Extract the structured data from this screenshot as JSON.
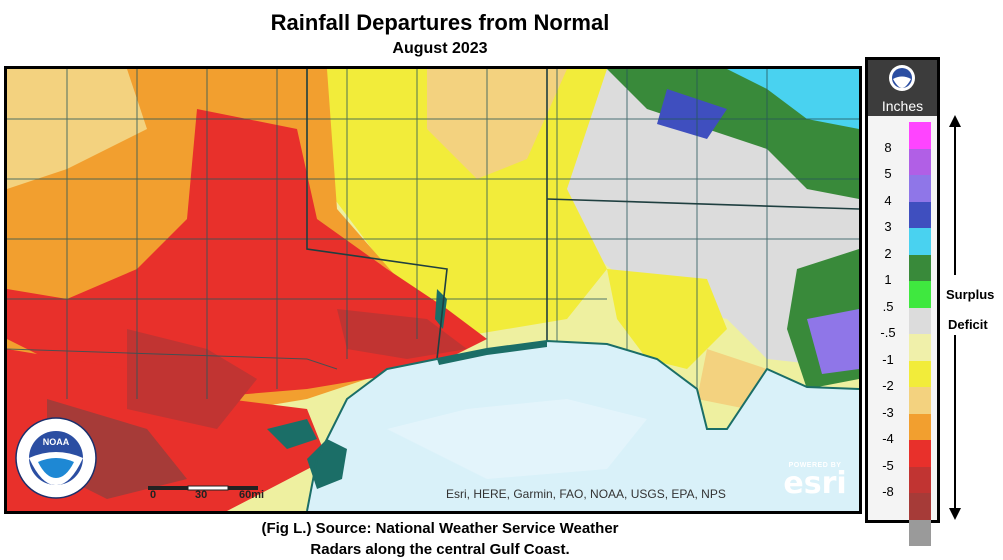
{
  "title": "Rainfall Departures from Normal",
  "subtitle": "August 2023",
  "attribution": "Esri, HERE, Garmin, FAO, NOAA, USGS, EPA, NPS",
  "esri": {
    "powered": "POWERED BY",
    "name": "esri"
  },
  "scale": {
    "labels": [
      "0",
      "30",
      "60mi"
    ]
  },
  "noaa_seal": {
    "center": "NOAA",
    "ring": "NATIONAL OCEANIC AND ATMOSPHERIC ADMINISTRATION · U.S. DEPARTMENT OF COMMERCE"
  },
  "legend": {
    "unit": "Inches",
    "logo": "NOAA",
    "ticks": [
      "8",
      "5",
      "4",
      "3",
      "2",
      "1",
      ".5",
      "-.5",
      "-1",
      "-2",
      "-3",
      "-4",
      "-5",
      "-8"
    ],
    "colors": [
      "#ff44ff",
      "#b15fe6",
      "#8f76e8",
      "#3f4fbf",
      "#49d2f0",
      "#398a3a",
      "#3fe83f",
      "#dcdcdc",
      "#f0f0aa",
      "#f2ec3a",
      "#f3d27f",
      "#f29f2f",
      "#e8302b",
      "#c13432",
      "#a63b38",
      "#9a9a9a"
    ],
    "surplus_label": "Surplus",
    "deficit_label": "Deficit"
  },
  "caption": {
    "line1": "(Fig L.) Source: National Weather Service Weather",
    "line2": "Radars along the central Gulf Coast."
  }
}
